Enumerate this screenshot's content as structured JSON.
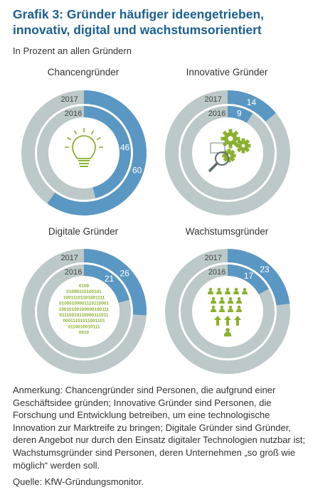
{
  "title": "Grafik 3: Gründer häufiger ideengetrieben, innovativ, digital und wachstumsorientiert",
  "subtitle": "In Prozent an allen Gründern",
  "chart_data": [
    {
      "type": "pie",
      "title": "Chancengründer",
      "categories": [
        "2016",
        "2017"
      ],
      "values": [
        46,
        60
      ],
      "icon": "lightbulb-icon"
    },
    {
      "type": "pie",
      "title": "Innovative Gründer",
      "categories": [
        "2016",
        "2017"
      ],
      "values": [
        9,
        14
      ],
      "icon": "gears-magnifier-icon"
    },
    {
      "type": "pie",
      "title": "Digitale Gründer",
      "categories": [
        "2016",
        "2017"
      ],
      "values": [
        21,
        26
      ],
      "icon": "binary-code-icon",
      "binary_lines": [
        "0100",
        "01000110100101",
        "10011101101001111",
        "01000100001110110001",
        "10010100100000100111",
        "01110010110000111011",
        "00011101011001101",
        "0110010010111",
        "0010"
      ]
    },
    {
      "type": "pie",
      "title": "Wachstumsgründer",
      "categories": [
        "2016",
        "2017"
      ],
      "values": [
        17,
        23
      ],
      "icon": "growth-people-icon"
    }
  ],
  "colors": {
    "highlight": "#5b97c3",
    "base": "#bcc8c9",
    "icon": "#8ab02f",
    "title": "#1b5f8f"
  },
  "note": "Anmerkung: Chancengründer sind Personen, die aufgrund einer Geschäftsidee gründen; Innovative Gründer sind Personen, die Forschung und Entwicklung betreiben, um eine technologische Innovation zur Marktreife zu bringen; Digitale Gründer sind Gründer, deren Angebot nur durch den Einsatz digitaler Technologien nutzbar ist; Wachstumsgründer sind Personen, deren Unternehmen „so groß wie möglich“ werden soll.",
  "source": "Quelle: KfW-Gründungsmonitor."
}
